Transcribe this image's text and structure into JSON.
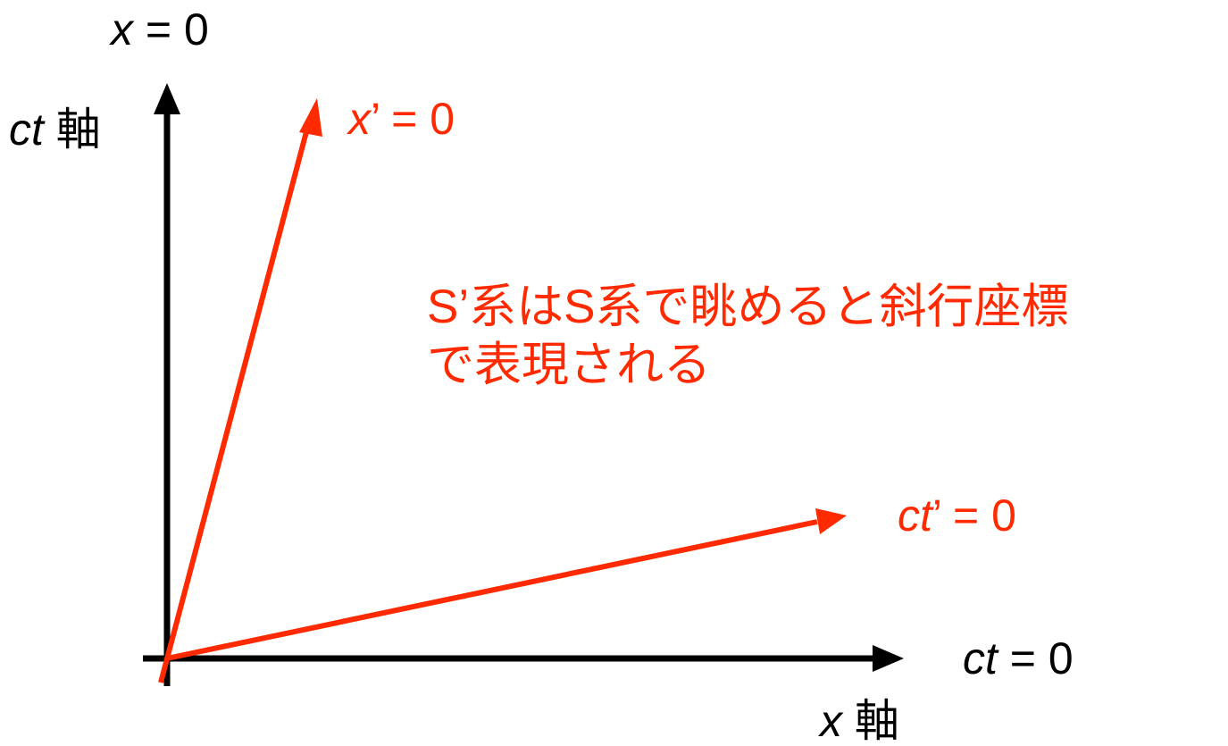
{
  "colors": {
    "axis": "#000000",
    "accent": "#ff2a00",
    "background": "#ffffff"
  },
  "labels": {
    "x_zero": {
      "var": "x",
      "rest": " = 0"
    },
    "ct_axis": {
      "var": "ct",
      "rest": " 軸"
    },
    "xprime_zero": {
      "var": "x",
      "rest": "’ = 0"
    },
    "ctprime_zero": {
      "var": "ct",
      "rest": "’ = 0"
    },
    "ct_zero": {
      "var": "ct",
      "rest": " = 0"
    },
    "x_axis": {
      "var": "x",
      "rest": " 軸"
    }
  },
  "caption": {
    "line1": "S’系はS系で眺めると斜行座標",
    "line2": "で表現される"
  }
}
